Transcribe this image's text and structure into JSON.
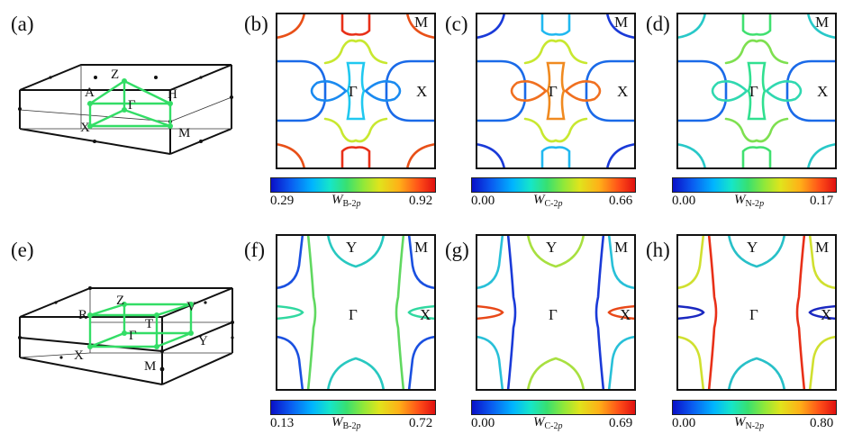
{
  "rows": [
    {
      "bz_panel": {
        "label": "(a)",
        "points": {
          "Z": "Z",
          "A": "A",
          "H": "H",
          "G": "Γ",
          "X": "X",
          "M": "M"
        }
      },
      "fs_panels": [
        {
          "label": "(b)",
          "corner": "M",
          "center": "Γ",
          "side": "X",
          "cbar": {
            "min": "0.29",
            "max": "0.92",
            "symbol": "W",
            "sub_elem": "B-2",
            "sub_orb": "p"
          }
        },
        {
          "label": "(c)",
          "corner": "M",
          "center": "Γ",
          "side": "X",
          "cbar": {
            "min": "0.00",
            "max": "0.66",
            "symbol": "W",
            "sub_elem": "C-2",
            "sub_orb": "p"
          }
        },
        {
          "label": "(d)",
          "corner": "M",
          "center": "Γ",
          "side": "X",
          "cbar": {
            "min": "0.00",
            "max": "0.17",
            "symbol": "W",
            "sub_elem": "N-2",
            "sub_orb": "p"
          }
        }
      ]
    },
    {
      "bz_panel": {
        "label": "(e)",
        "points": {
          "Z": "Z",
          "R": "R",
          "T": "T",
          "V": "V",
          "G": "Γ",
          "Y": "Y",
          "X": "X",
          "M": "M"
        }
      },
      "fs_panels": [
        {
          "label": "(f)",
          "corner": "M",
          "center": "Γ",
          "side": "X",
          "top": "Y",
          "cbar": {
            "min": "0.13",
            "max": "0.72",
            "symbol": "W",
            "sub_elem": "B-2",
            "sub_orb": "p"
          }
        },
        {
          "label": "(g)",
          "corner": "M",
          "center": "Γ",
          "side": "X",
          "top": "Y",
          "cbar": {
            "min": "0.00",
            "max": "0.69",
            "symbol": "W",
            "sub_elem": "C-2",
            "sub_orb": "p"
          }
        },
        {
          "label": "(h)",
          "corner": "M",
          "center": "Γ",
          "side": "X",
          "top": "Y",
          "cbar": {
            "min": "0.00",
            "max": "0.80",
            "symbol": "W",
            "sub_elem": "N-2",
            "sub_orb": "p"
          }
        }
      ]
    }
  ],
  "colors": {
    "path": "#33dd66",
    "frame": "#111111"
  }
}
